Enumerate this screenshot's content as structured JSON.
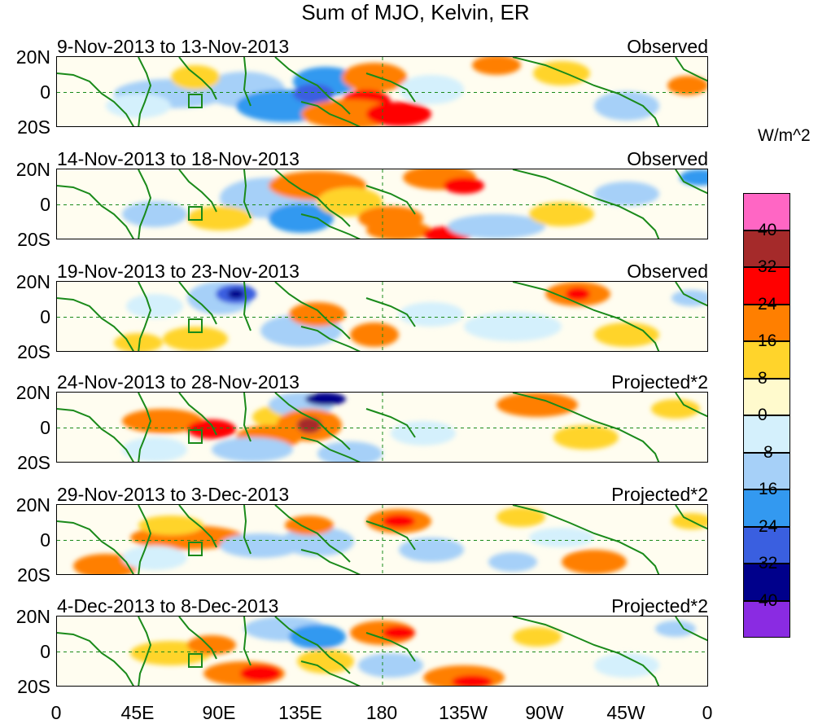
{
  "title": "Sum of MJO, Kelvin, ER",
  "units": "W/m^2",
  "lat_labels": [
    "20N",
    "0",
    "20S"
  ],
  "lon_labels": [
    "0",
    "45E",
    "90E",
    "135E",
    "180",
    "135W",
    "90W",
    "45W",
    "0"
  ],
  "panels": [
    {
      "date": "9-Nov-2013 to 13-Nov-2013",
      "type": "Observed"
    },
    {
      "date": "14-Nov-2013 to 18-Nov-2013",
      "type": "Observed"
    },
    {
      "date": "19-Nov-2013 to 23-Nov-2013",
      "type": "Observed"
    },
    {
      "date": "24-Nov-2013 to 28-Nov-2013",
      "type": "Projected*2"
    },
    {
      "date": "29-Nov-2013 to 3-Dec-2013",
      "type": "Projected*2"
    },
    {
      "date": "4-Dec-2013 to 8-Dec-2013",
      "type": "Projected*2"
    }
  ],
  "colorbar": {
    "labels": [
      "40",
      "32",
      "24",
      "16",
      "8",
      "0",
      "-8",
      "-16",
      "-24",
      "-32",
      "-40"
    ],
    "colors": [
      "#ff66c4",
      "#a52a2a",
      "#ff0000",
      "#ff7f00",
      "#ffd42b",
      "#fffacd",
      "#d4f0fc",
      "#a6d0f8",
      "#3399f0",
      "#3a5fe0",
      "#00008b",
      "#8a2be2"
    ]
  },
  "palette": {
    "coast": "#1a8a1a",
    "box": "#1a8a1a",
    "equator": "#1a8a1a"
  }
}
